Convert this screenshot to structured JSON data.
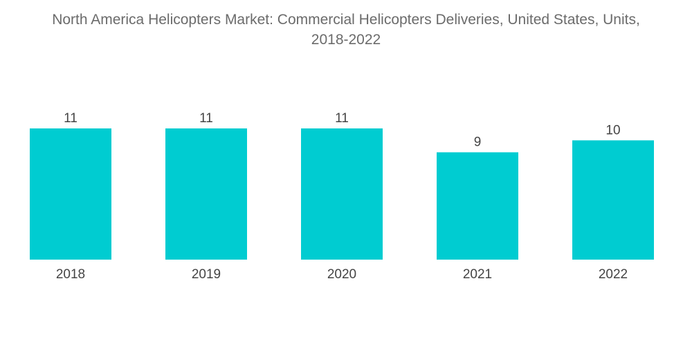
{
  "chart_title_line1": "North America Helicopters Market: Commercial Helicopters Deliveries, United States, Units,",
  "chart_title_line2": "2018-2022",
  "chart_data": {
    "type": "bar",
    "title": "North America Helicopters Market: Commercial Helicopters Deliveries, United States, Units, 2018-2022",
    "categories": [
      "2018",
      "2019",
      "2020",
      "2021",
      "2022"
    ],
    "values": [
      11,
      11,
      11,
      9,
      10
    ],
    "value_labels": [
      "11",
      "11",
      "11",
      "9",
      "10"
    ],
    "xlabel": "",
    "ylabel": "",
    "ylim": [
      0,
      11
    ],
    "grid": false,
    "legend": "none",
    "bar_color": "#00ccd1"
  }
}
